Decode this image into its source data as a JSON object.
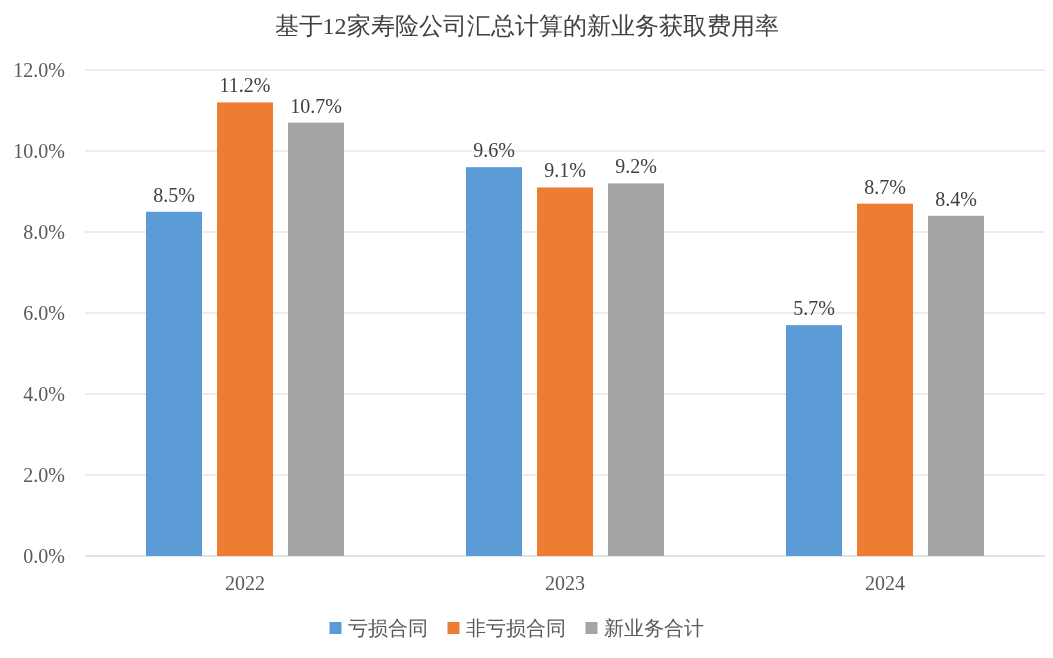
{
  "chart_data": {
    "type": "bar",
    "title": "基于12家寿险公司汇总计算的新业务获取费用率",
    "categories": [
      "2022",
      "2023",
      "2024"
    ],
    "series": [
      {
        "name": "亏损合同",
        "color": "#5b9bd5",
        "values": [
          8.5,
          9.6,
          5.7
        ],
        "value_labels": [
          "8.5%",
          "9.6%",
          "5.7%"
        ]
      },
      {
        "name": "非亏损合同",
        "color": "#ed7d31",
        "values": [
          11.2,
          9.1,
          8.7
        ],
        "value_labels": [
          "11.2%",
          "9.1%",
          "8.7%"
        ]
      },
      {
        "name": "新业务合计",
        "color": "#a5a5a5",
        "values": [
          10.7,
          9.2,
          8.4
        ],
        "value_labels": [
          "10.7%",
          "9.2%",
          "8.4%"
        ]
      }
    ],
    "ylim": [
      0,
      12
    ],
    "yticks": [
      {
        "value": 0,
        "label": "0.0%"
      },
      {
        "value": 2,
        "label": "2.0%"
      },
      {
        "value": 4,
        "label": "4.0%"
      },
      {
        "value": 6,
        "label": "6.0%"
      },
      {
        "value": 8,
        "label": "8.0%"
      },
      {
        "value": 10,
        "label": "10.0%"
      },
      {
        "value": 12,
        "label": "12.0%"
      }
    ],
    "grid": "y",
    "legend": "bottom"
  }
}
